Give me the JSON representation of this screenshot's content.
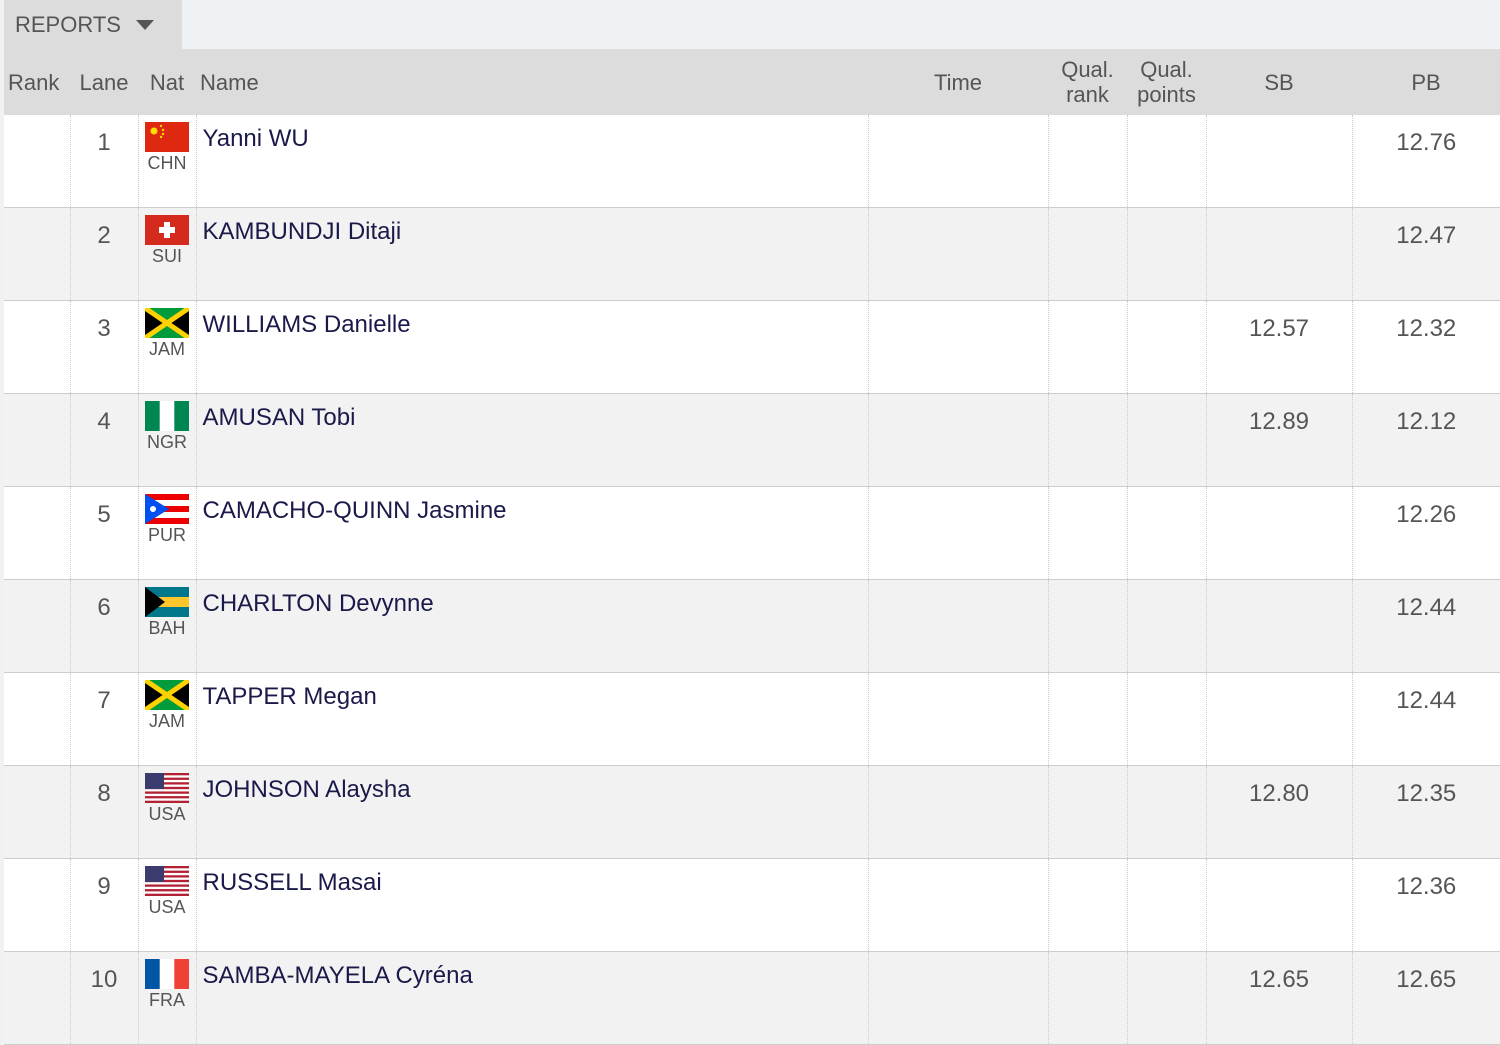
{
  "menu": {
    "label": "REPORTS"
  },
  "table": {
    "headers": [
      "Rank",
      "Lane",
      "Nat",
      "Name",
      "Time",
      "Qual. rank",
      "Qual. points",
      "SB",
      "PB"
    ],
    "rows": [
      {
        "lane": 1,
        "nat": "CHN",
        "name": "Yanni WU",
        "pb": "12.76"
      },
      {
        "lane": 2,
        "nat": "SUI",
        "name": "KAMBUNDJI Ditaji",
        "pb": "12.47"
      },
      {
        "lane": 3,
        "nat": "JAM",
        "name": "WILLIAMS Danielle",
        "sb": "12.57",
        "pb": "12.32"
      },
      {
        "lane": 4,
        "nat": "NGR",
        "name": "AMUSAN Tobi",
        "sb": "12.89",
        "pb": "12.12"
      },
      {
        "lane": 5,
        "nat": "PUR",
        "name": "CAMACHO-QUINN Jasmine",
        "pb": "12.26"
      },
      {
        "lane": 6,
        "nat": "BAH",
        "name": "CHARLTON Devynne",
        "pb": "12.44"
      },
      {
        "lane": 7,
        "nat": "JAM",
        "name": "TAPPER Megan",
        "pb": "12.44"
      },
      {
        "lane": 8,
        "nat": "USA",
        "name": "JOHNSON Alaysha",
        "sb": "12.80",
        "pb": "12.35"
      },
      {
        "lane": 9,
        "nat": "USA",
        "name": "RUSSELL Masai",
        "pb": "12.36"
      },
      {
        "lane": 10,
        "nat": "FRA",
        "name": "SAMBA-MAYELA Cyréna",
        "sb": "12.65",
        "pb": "12.65"
      }
    ]
  }
}
